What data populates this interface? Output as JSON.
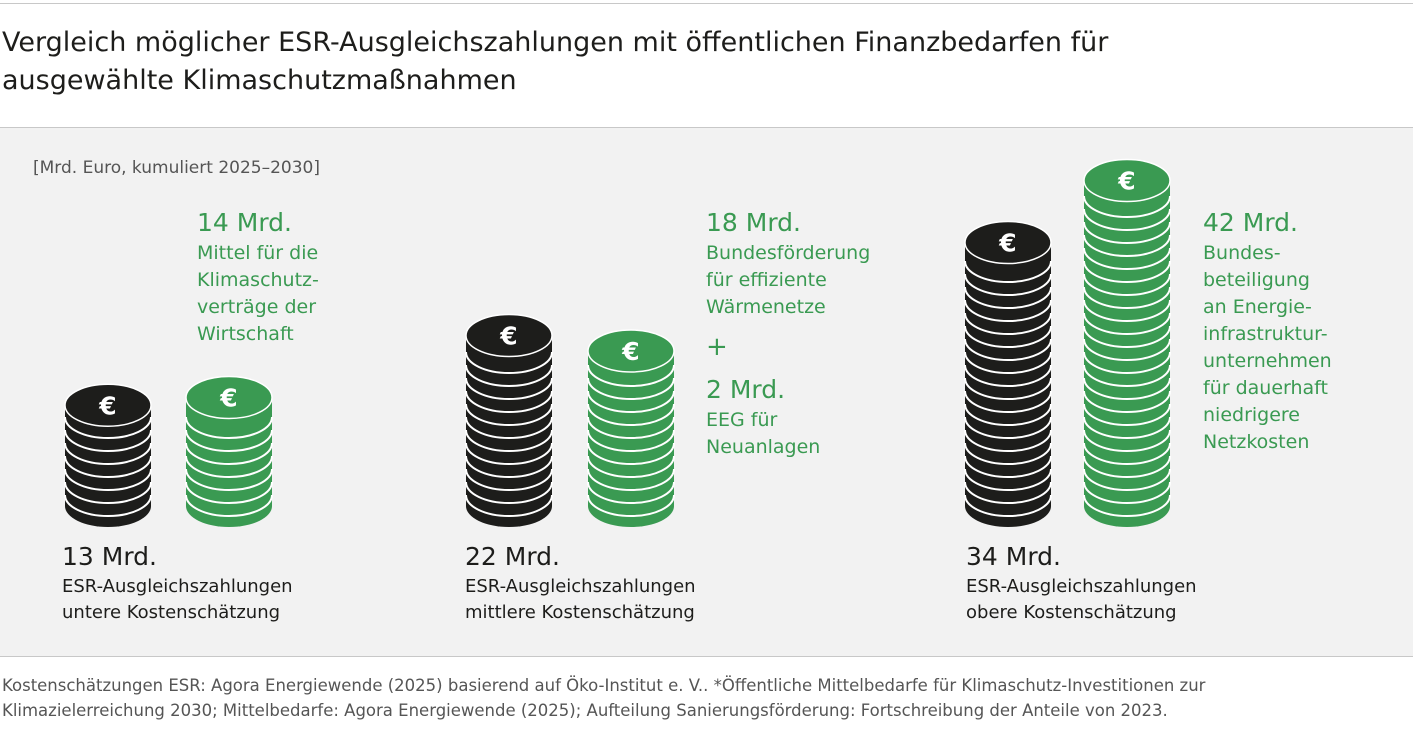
{
  "title_line1": "Vergleich möglicher ESR-Ausgleichszahlungen mit öffentlichen Finanzbedarfen für",
  "title_line2": "ausgewählte Klimaschutzmaßnahmen",
  "unit": "[Mrd. Euro, kumuliert 2025–2030]",
  "source_line1": "Kostenschätzungen ESR: Agora Energiewende (2025) basierend auf Öko-Institut e. V.. *Öffentliche Mittelbedarfe für Klimaschutz-Investitionen zur",
  "source_line2": "Klimazielerreichung 2030; Mittelbedarfe: Agora Energiewende (2025); Aufteilung Sanierungsförderung: Fortschreibung der Anteile von 2023.",
  "colors": {
    "esr": "#1d1d1b",
    "public": "#3a9a52",
    "coin_line": "#ffffff"
  },
  "icon": "euro-coin-stack-icon",
  "coin_symbol": "€",
  "chart_data": {
    "type": "bar",
    "categories": [
      "untere Kostenschätzung",
      "mittlere Kostenschätzung",
      "obere Kostenschätzung"
    ],
    "series": [
      {
        "name": "ESR-Ausgleichszahlungen",
        "values": [
          13,
          22,
          34
        ]
      },
      {
        "name": "Öffentliche Mittelbedarfe",
        "values": [
          14,
          20,
          42
        ]
      }
    ],
    "groups": [
      {
        "esr_value_label": "13 Mrd.",
        "esr_label_line1": "ESR-Ausgleichszahlungen",
        "esr_label_line2": "untere Kostenschätzung",
        "public_value_label": "14 Mrd.",
        "public_lines": [
          "Mittel für die",
          "Klimaschutz-",
          "verträge der",
          "Wirtschaft"
        ]
      },
      {
        "esr_value_label": "22 Mrd.",
        "esr_label_line1": "ESR-Ausgleichszahlungen",
        "esr_label_line2": "mittlere Kostenschätzung",
        "public_value_label": "18 Mrd.",
        "public_lines": [
          "Bundesförderung",
          "für effiziente",
          "Wärmenetze"
        ],
        "plus": "+",
        "public_value_label_2": "2 Mrd.",
        "public_lines_2": [
          "EEG für",
          "Neuanlagen"
        ]
      },
      {
        "esr_value_label": "34 Mrd.",
        "esr_label_line1": "ESR-Ausgleichszahlungen",
        "esr_label_line2": "obere Kostenschätzung",
        "public_value_label": "42 Mrd.",
        "public_lines": [
          "Bundes-",
          "beteiligung",
          "an Energie-",
          "infrastruktur-",
          "unternehmen",
          "für dauerhaft",
          "niedrigere",
          "Netzkosten"
        ]
      }
    ]
  }
}
